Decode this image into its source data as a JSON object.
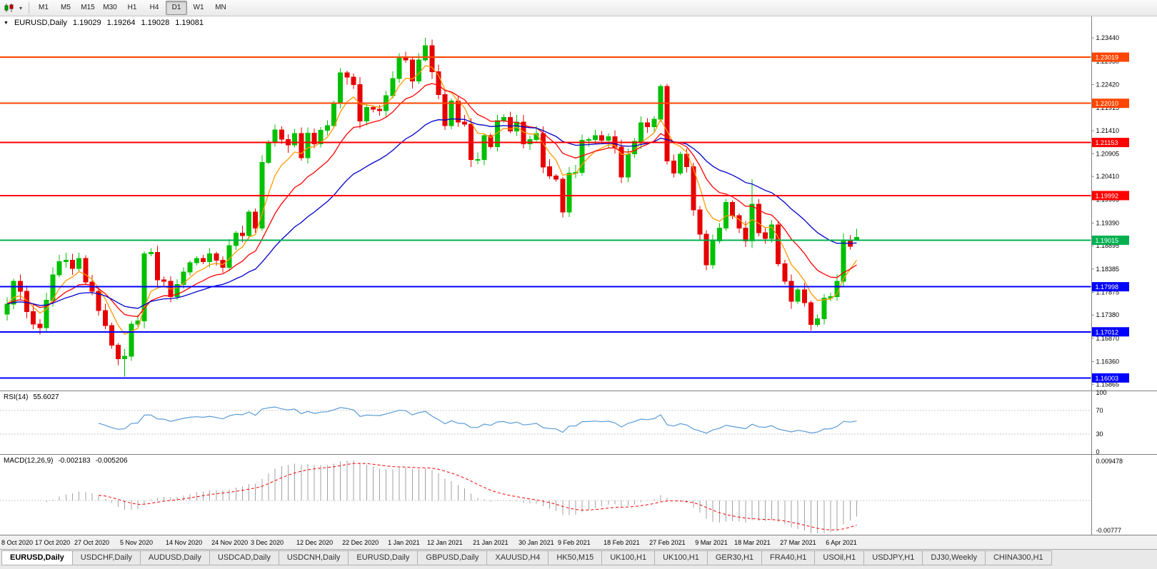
{
  "toolbar": {
    "timeframes": [
      {
        "label": "M1",
        "active": false
      },
      {
        "label": "M5",
        "active": false
      },
      {
        "label": "M15",
        "active": false
      },
      {
        "label": "M30",
        "active": false
      },
      {
        "label": "H1",
        "active": false
      },
      {
        "label": "H4",
        "active": false
      },
      {
        "label": "D1",
        "active": true
      },
      {
        "label": "W1",
        "active": false
      },
      {
        "label": "MN",
        "active": false
      }
    ]
  },
  "chart_header": {
    "symbol": "EURUSD,Daily",
    "open": "1.19029",
    "high": "1.19264",
    "low": "1.19028",
    "close": "1.19081"
  },
  "indicators": {
    "rsi": {
      "label": "RSI(14)",
      "value": "55.6027",
      "axis_labels": [
        "100",
        "70",
        "30",
        "0"
      ],
      "levels": [
        70,
        30
      ],
      "color": "#5b9bd5"
    },
    "macd": {
      "label": "MACD(12,26,9)",
      "value": "-0.002183",
      "signal_value": "-0.005206",
      "axis_top": "0.009478",
      "axis_bottom": "-0.00777",
      "histogram_color": "#a0a0a0",
      "signal_color": "#ff0000"
    }
  },
  "chart_data": {
    "type": "candlestick",
    "symbol": "EURUSD",
    "timeframe": "Daily",
    "current_bar": {
      "open": 1.19029,
      "high": 1.19264,
      "low": 1.19028,
      "close": 1.19081
    },
    "price_range": {
      "top": 1.2391,
      "bottom": 1.15744
    },
    "up_color": "#00c000",
    "down_color": "#e60000",
    "y_axis_ticks": [
      "1.23440",
      "1.22930",
      "1.22420",
      "1.21915",
      "1.21410",
      "1.20905",
      "1.20410",
      "1.19905",
      "1.19390",
      "1.18895",
      "1.18385",
      "1.17875",
      "1.17380",
      "1.16870",
      "1.16360",
      "1.15865"
    ],
    "x_labels": [
      "8 Oct 2020",
      "17 Oct 2020",
      "27 Oct 2020",
      "5 Nov 2020",
      "14 Nov 2020",
      "24 Nov 2020",
      "3 Dec 2020",
      "12 Dec 2020",
      "22 Dec 2020",
      "1 Jan 2021",
      "12 Jan 2021",
      "21 Jan 2021",
      "30 Jan 2021",
      "9 Feb 2021",
      "18 Feb 2021",
      "27 Feb 2021",
      "9 Mar 2021",
      "18 Mar 2021",
      "27 Mar 2021",
      "6 Apr 2021"
    ],
    "x_label_positions": [
      0,
      7,
      13,
      20,
      27,
      34,
      40,
      47,
      54,
      61,
      67,
      74,
      81,
      87,
      94,
      101,
      108,
      114,
      121,
      128
    ],
    "horizontal_lines": [
      {
        "price": 1.23019,
        "label": "1.23019",
        "color": "#ff4500"
      },
      {
        "price": 1.2201,
        "label": "1.22010",
        "color": "#ff4500"
      },
      {
        "price": 1.21153,
        "label": "1.21153",
        "color": "#ff0000"
      },
      {
        "price": 1.19992,
        "label": "1.19992",
        "color": "#ff0000"
      },
      {
        "price": 1.19015,
        "label": "1.19015",
        "color": "#00b050"
      },
      {
        "price": 1.17998,
        "label": "1.17998",
        "color": "#0000ff"
      },
      {
        "price": 1.17012,
        "label": "1.17012",
        "color": "#0000ff"
      },
      {
        "price": 1.16003,
        "label": "1.16003",
        "color": "#0000ff"
      }
    ],
    "moving_averages": [
      {
        "name": "fast",
        "period": 6,
        "color": "#ff9900"
      },
      {
        "name": "medium",
        "period": 14,
        "color": "#ff0000"
      },
      {
        "name": "slow",
        "period": 30,
        "color": "#0000cc"
      }
    ],
    "closes": [
      1.1762,
      1.1812,
      1.179,
      1.1745,
      1.1718,
      1.171,
      1.177,
      1.1826,
      1.1855,
      1.1858,
      1.184,
      1.1862,
      1.181,
      1.179,
      1.1748,
      1.1715,
      1.1672,
      1.1642,
      1.1648,
      1.1718,
      1.1725,
      1.1872,
      1.1875,
      1.1815,
      1.1812,
      1.1778,
      1.1805,
      1.1832,
      1.1852,
      1.1862,
      1.1855,
      1.1872,
      1.1858,
      1.1842,
      1.189,
      1.1917,
      1.1912,
      1.1963,
      1.1928,
      1.2072,
      1.2115,
      1.2143,
      1.2122,
      1.211,
      1.2135,
      1.2082,
      1.2136,
      1.2112,
      1.2142,
      1.2152,
      1.2202,
      1.2268,
      1.2258,
      1.2242,
      1.2162,
      1.2192,
      1.2188,
      1.2185,
      1.2218,
      1.2255,
      1.23,
      1.2296,
      1.225,
      1.2296,
      1.2327,
      1.227,
      1.222,
      1.2152,
      1.2206,
      1.216,
      1.2155,
      1.2078,
      1.2078,
      1.213,
      1.2106,
      1.2163,
      1.217,
      1.214,
      1.216,
      1.2112,
      1.2122,
      1.2135,
      1.2062,
      1.2042,
      1.2035,
      1.1963,
      1.2048,
      1.205,
      1.212,
      1.2122,
      1.213,
      1.212,
      1.2128,
      1.2105,
      1.204,
      1.209,
      1.2118,
      1.2158,
      1.215,
      1.2166,
      1.2238,
      1.2075,
      1.2048,
      1.209,
      1.2062,
      1.1968,
      1.1915,
      1.1848,
      1.19,
      1.1928,
      1.1984,
      1.1955,
      1.1928,
      1.19,
      1.198,
      1.1918,
      1.1905,
      1.1935,
      1.185,
      1.1812,
      1.1768,
      1.1793,
      1.1765,
      1.1717,
      1.173,
      1.1775,
      1.1778,
      1.1812,
      1.1902,
      1.1888,
      1.1908
    ],
    "wick_overrides": {
      "18": {
        "low": 1.1603
      },
      "64": {
        "high": 1.2344
      },
      "100": {
        "high": 1.2243
      },
      "114": {
        "high": 1.2035
      },
      "123": {
        "low": 1.1704
      },
      "130": {
        "open": 1.19029,
        "high": 1.19264,
        "low": 1.19028
      }
    }
  },
  "tabs": [
    {
      "label": "EURUSD,Daily",
      "active": true
    },
    {
      "label": "USDCHF,Daily",
      "active": false
    },
    {
      "label": "AUDUSD,Daily",
      "active": false
    },
    {
      "label": "USDCAD,Daily",
      "active": false
    },
    {
      "label": "USDCNH,Daily",
      "active": false
    },
    {
      "label": "EURUSD,Daily",
      "active": false
    },
    {
      "label": "GBPUSD,Daily",
      "active": false
    },
    {
      "label": "XAUUSD,H4",
      "active": false
    },
    {
      "label": "HK50,M15",
      "active": false
    },
    {
      "label": "UK100,H1",
      "active": false
    },
    {
      "label": "UK100,H1",
      "active": false
    },
    {
      "label": "GER30,H1",
      "active": false
    },
    {
      "label": "FRA40,H1",
      "active": false
    },
    {
      "label": "USOil,H1",
      "active": false
    },
    {
      "label": "USDJPY,H1",
      "active": false
    },
    {
      "label": "DJ30,Weekly",
      "active": false
    },
    {
      "label": "CHINA300,H1",
      "active": false
    }
  ]
}
